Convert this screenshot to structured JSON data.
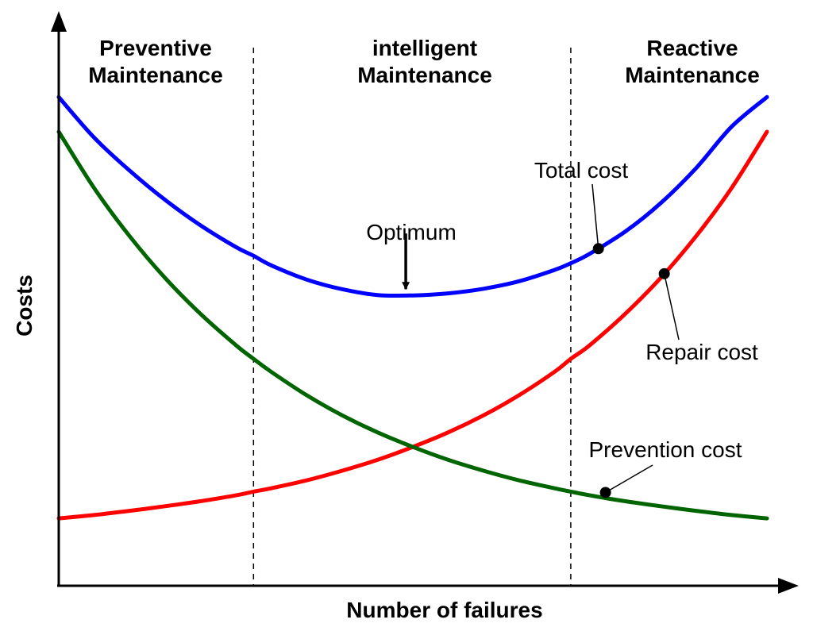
{
  "chart_data": {
    "type": "line",
    "title": "",
    "xlabel": "Number of failures",
    "ylabel": "Costs",
    "xlim": [
      0,
      100
    ],
    "ylim": [
      0,
      100
    ],
    "grid": false,
    "ticks": "none",
    "regions": [
      {
        "id": "preventive",
        "label_lines": [
          "Preventive",
          "Maintenance"
        ],
        "x_start": 0,
        "x_end": 27.5
      },
      {
        "id": "intelligent",
        "label_lines": [
          "intelligent",
          "Maintenance"
        ],
        "x_start": 27.5,
        "x_end": 72.3
      },
      {
        "id": "reactive",
        "label_lines": [
          "Reactive",
          "Maintenance"
        ],
        "x_start": 72.3,
        "x_end": 100
      }
    ],
    "dividers_x": [
      27.5,
      72.3
    ],
    "x": [
      0,
      5,
      10,
      15,
      20,
      25,
      27.5,
      30,
      35,
      40,
      45,
      50,
      55,
      60,
      65,
      70,
      72.3,
      75,
      80,
      85,
      90,
      95,
      100
    ],
    "series": [
      {
        "name": "Total cost",
        "color": "#0000ff",
        "values": [
          108.3,
          98.6,
          90.7,
          83.7,
          77.6,
          72.4,
          70.3,
          68.0,
          64.6,
          62.3,
          60.9,
          60.8,
          61.3,
          62.4,
          64.2,
          66.9,
          68.5,
          70.8,
          76.1,
          82.9,
          91.3,
          101.2,
          108.3
        ]
      },
      {
        "name": "Prevention cost",
        "color": "#006400",
        "values": [
          100.0,
          86.5,
          75.0,
          65.0,
          56.4,
          48.9,
          45.6,
          42.5,
          36.9,
          32.1,
          28.0,
          24.5,
          21.4,
          18.8,
          16.5,
          14.6,
          13.8,
          12.9,
          11.5,
          10.3,
          9.2,
          8.2,
          7.4
        ]
      },
      {
        "name": "Repair cost",
        "color": "#ff0000",
        "values": [
          7.4,
          8.2,
          9.2,
          10.3,
          11.5,
          12.9,
          13.8,
          14.6,
          16.5,
          18.8,
          21.4,
          24.5,
          28.0,
          32.1,
          36.9,
          42.5,
          45.6,
          48.9,
          56.4,
          65.0,
          75.0,
          86.5,
          100.0
        ]
      }
    ],
    "annotations": [
      {
        "text": "Optimum",
        "points_to": "Total cost minimum",
        "x": 49,
        "y": 60.8,
        "style": "arrow"
      },
      {
        "text": "Total cost",
        "series": "Total cost",
        "x": 76.2,
        "y": 72.0,
        "style": "leader-dot"
      },
      {
        "text": "Repair cost",
        "series": "Repair cost",
        "x": 85.5,
        "y": 66.0,
        "style": "leader-dot"
      },
      {
        "text": "Prevention cost",
        "series": "Prevention cost",
        "x": 77.2,
        "y": 13.6,
        "style": "leader-dot"
      }
    ]
  }
}
